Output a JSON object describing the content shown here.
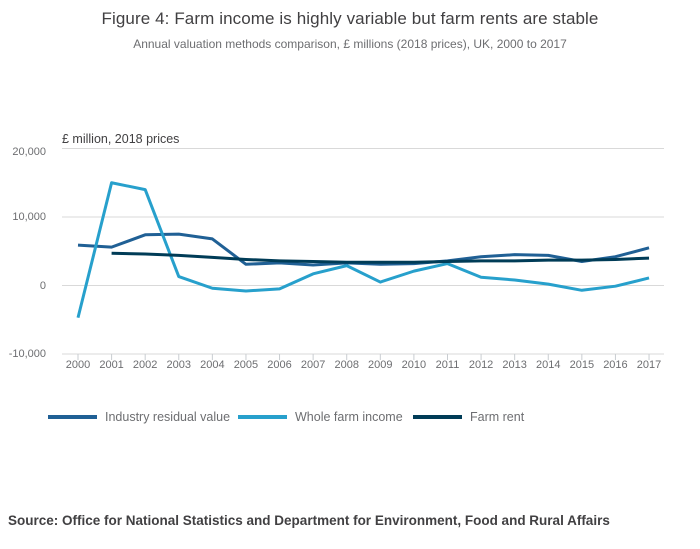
{
  "header": {
    "title": "Figure 4: Farm income is highly variable but farm rents are stable",
    "subtitle": "Annual valuation methods comparison, £ millions (2018 prices), UK, 2000 to 2017"
  },
  "chart_data": {
    "type": "line",
    "title": "Figure 4: Farm income is highly variable but farm rents are stable",
    "subtitle": "Annual valuation methods comparison, £ millions (2018 prices), UK, 2000 to 2017",
    "unit_label": "£ million, 2018 prices",
    "x": [
      2000,
      2001,
      2002,
      2003,
      2004,
      2005,
      2006,
      2007,
      2008,
      2009,
      2010,
      2011,
      2012,
      2013,
      2014,
      2015,
      2016,
      2017
    ],
    "series": [
      {
        "name": "Industry residual value",
        "color": "#206095",
        "values": [
          5900,
          5600,
          7400,
          7500,
          6800,
          3100,
          3300,
          3000,
          3300,
          3100,
          3200,
          3600,
          4200,
          4500,
          4400,
          3500,
          4200,
          5500
        ]
      },
      {
        "name": "Whole farm income",
        "color": "#27a0cc",
        "values": [
          -4700,
          15000,
          14000,
          1300,
          -400,
          -800,
          -500,
          1700,
          2900,
          500,
          2100,
          3200,
          1200,
          800,
          200,
          -700,
          -100,
          1100
        ]
      },
      {
        "name": "Farm rent",
        "color": "#003c57",
        "values": [
          null,
          4700,
          4600,
          4400,
          4100,
          3800,
          3600,
          3500,
          3400,
          3400,
          3400,
          3500,
          3600,
          3600,
          3700,
          3700,
          3800,
          4000
        ]
      }
    ],
    "ylim": [
      -10000,
      20000
    ],
    "yticks": [
      20000,
      10000,
      0,
      -10000
    ],
    "grid": "horizontal-only",
    "legend_position": "bottom",
    "grid_color": "#d9d9d9",
    "tick_color": "#c9cdd1"
  },
  "footer": {
    "source": "Source: Office for National Statistics and Department for Environment, Food and Rural Affairs"
  }
}
